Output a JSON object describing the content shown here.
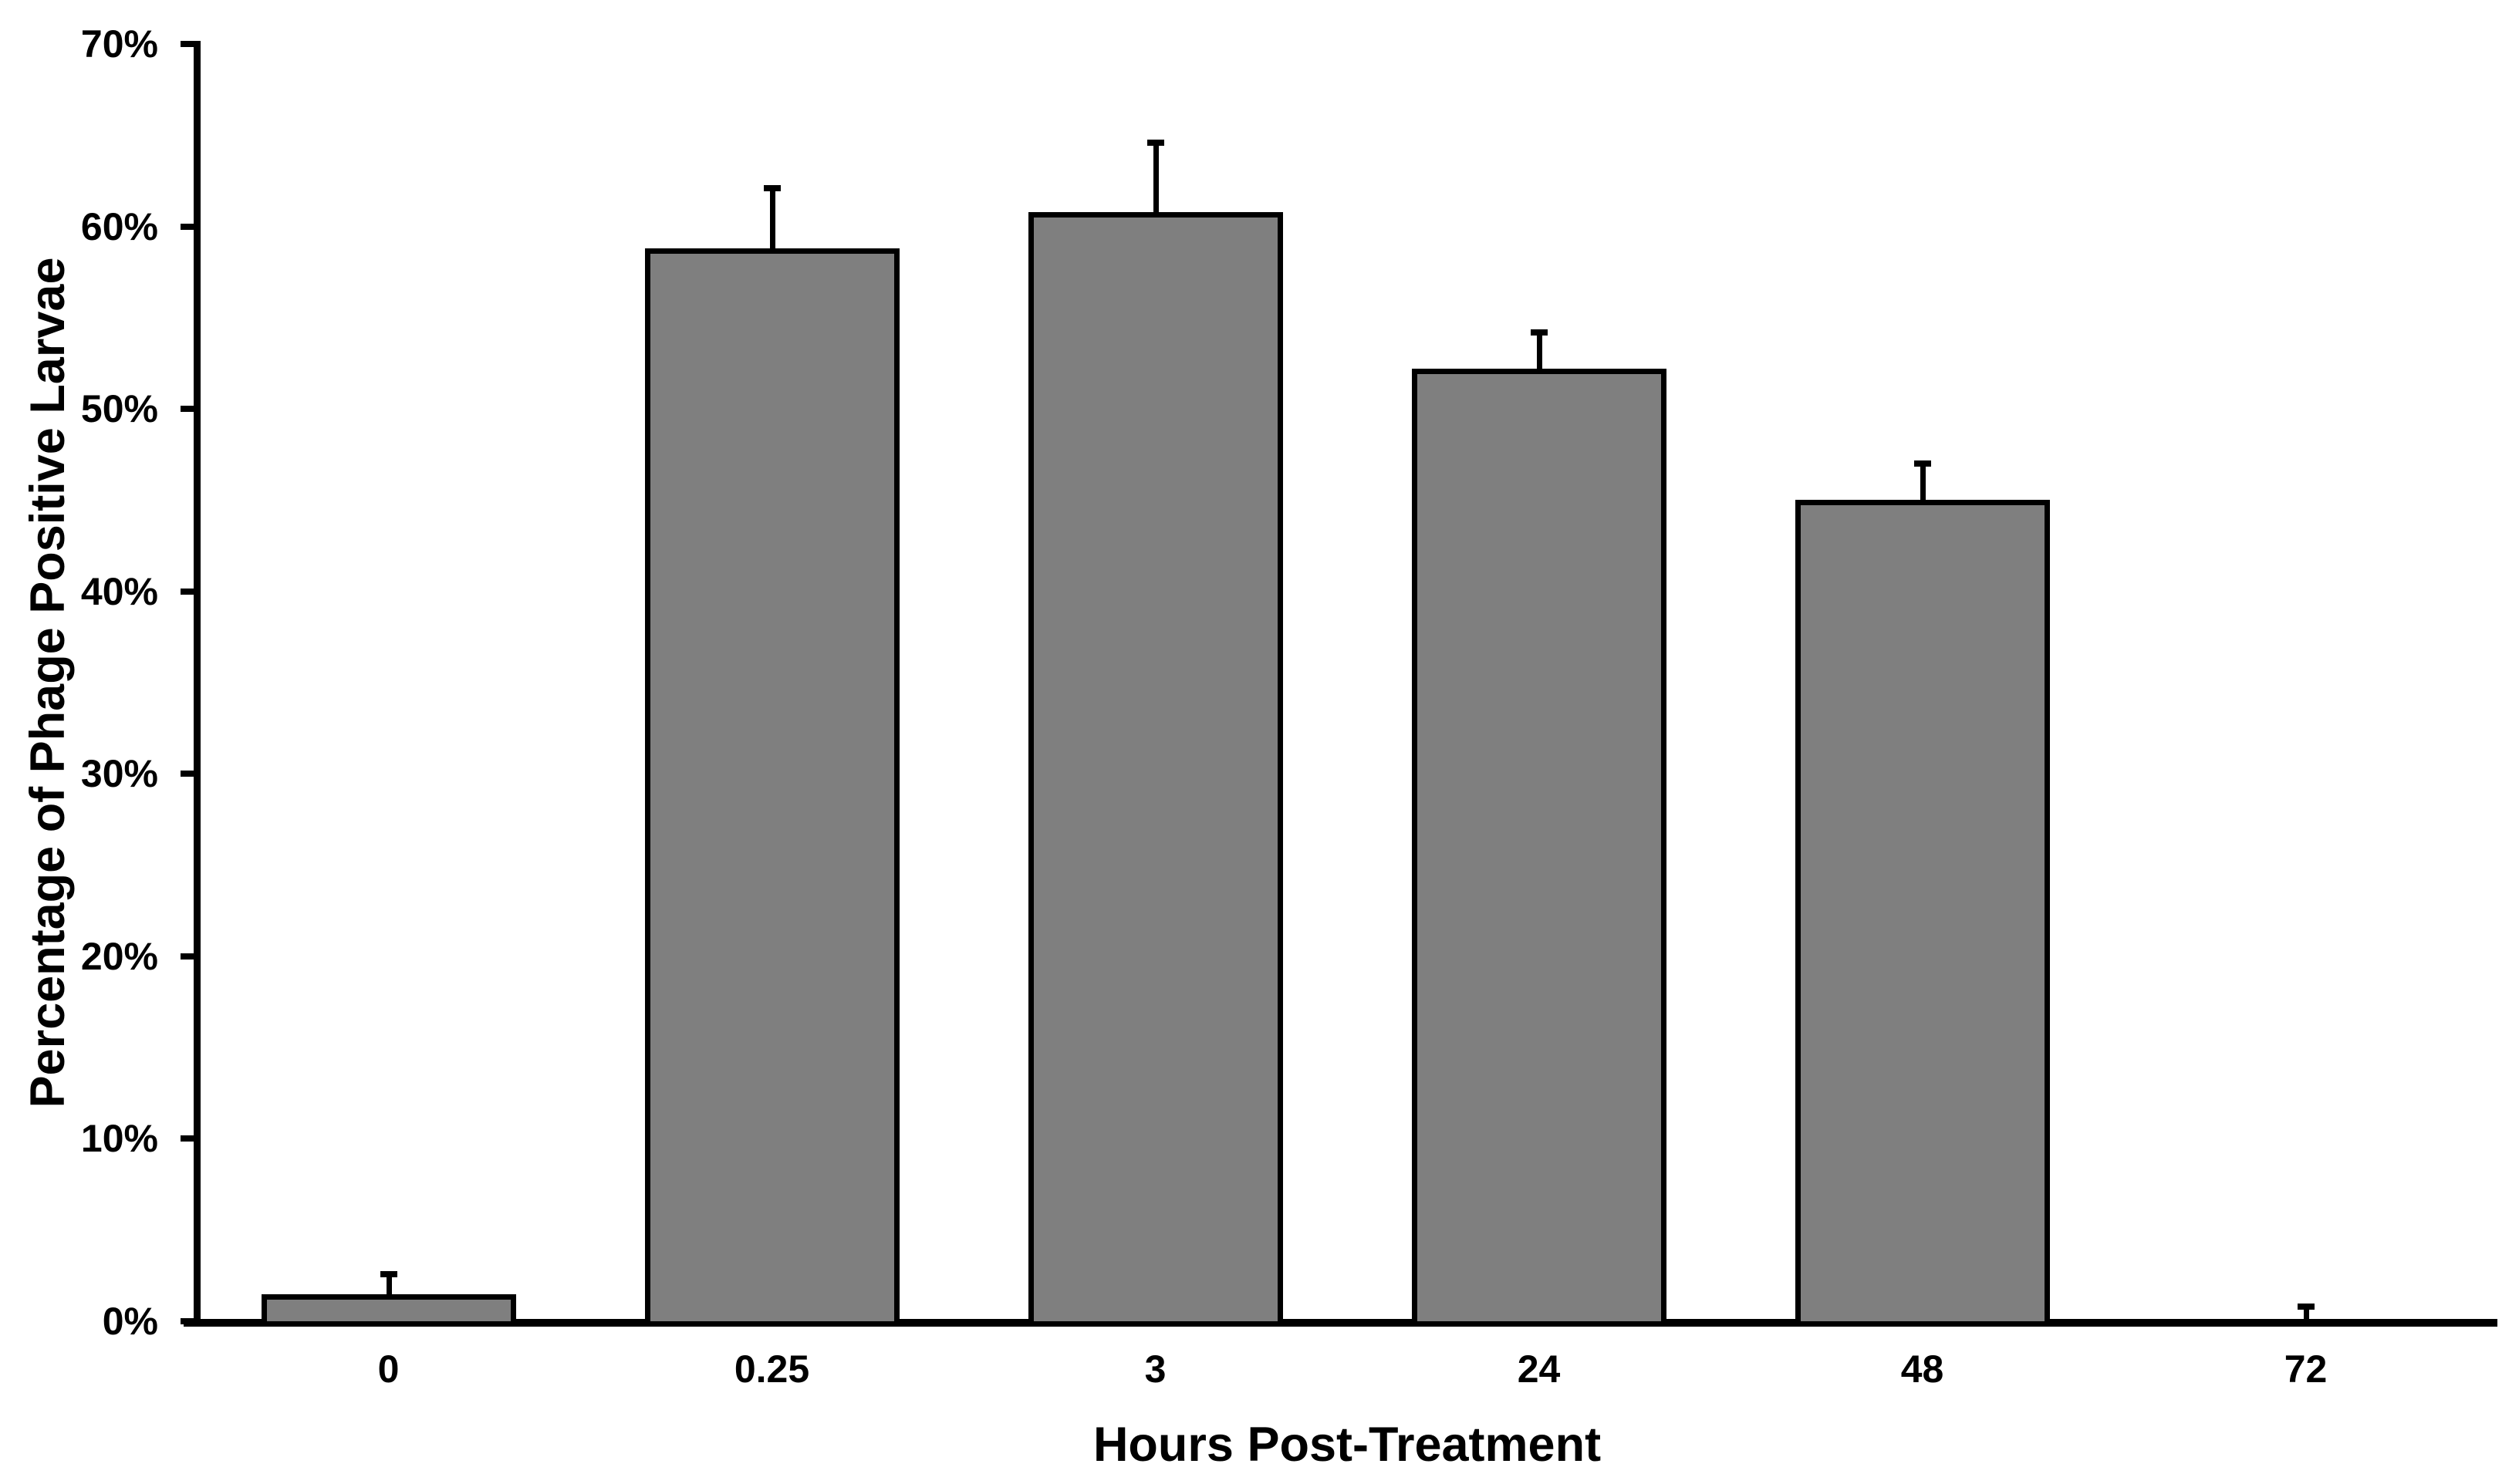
{
  "chart_data": {
    "type": "bar",
    "title": "",
    "xlabel": "Hours Post-Treatment",
    "ylabel": "Percentage of Phage Positive Larvae",
    "categories": [
      "0",
      "0.25",
      "3",
      "24",
      "48",
      "72"
    ],
    "values": [
      1.5,
      58.8,
      60.8,
      52.2,
      45.0,
      0
    ],
    "error_plus": [
      1.0,
      3.2,
      3.7,
      1.9,
      1.9,
      0.7
    ],
    "value_unit": "%",
    "y_tick_labels": [
      "0%",
      "10%",
      "20%",
      "30%",
      "40%",
      "50%",
      "60%",
      "70%"
    ],
    "y_tick_values": [
      0,
      10,
      20,
      30,
      40,
      50,
      60,
      70
    ],
    "ylim": [
      0,
      70
    ],
    "grid": false,
    "legend": false,
    "bar_fill_color": "#7f7f7f",
    "bar_border_color": "#000000",
    "axis_color": "#000000",
    "text_color": "#000000",
    "background_color": "#ffffff"
  }
}
